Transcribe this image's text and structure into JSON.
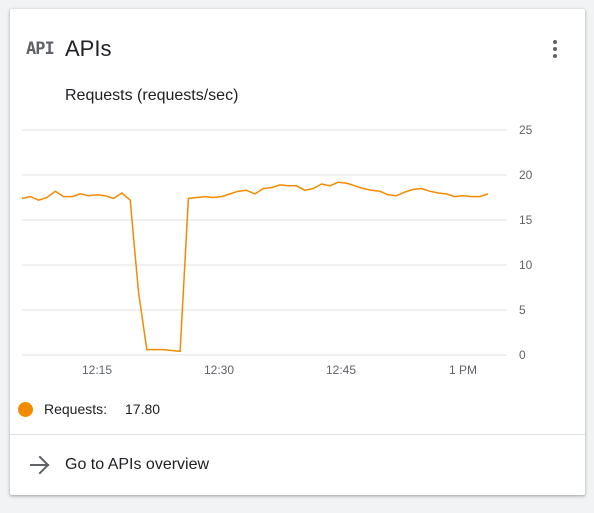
{
  "card": {
    "icon": "api-icon",
    "icon_text": "API",
    "title": "APIs",
    "menu_icon": "more-vert-icon"
  },
  "chart_data": {
    "type": "line",
    "title": "Requests (requests/sec)",
    "x_ticks": [
      "12:15",
      "12:30",
      "12:45",
      "1 PM"
    ],
    "y_ticks": [
      0,
      5,
      10,
      15,
      20,
      25
    ],
    "ylim": [
      0,
      25
    ],
    "grid": true,
    "series": [
      {
        "name": "Requests",
        "color": "#f28b00",
        "values": [
          17.4,
          17.6,
          17.2,
          17.5,
          18.2,
          17.6,
          17.6,
          17.9,
          17.7,
          17.8,
          17.7,
          17.4,
          18.0,
          17.2,
          7.0,
          0.6,
          0.6,
          0.6,
          0.5,
          0.4,
          17.4,
          17.5,
          17.6,
          17.5,
          17.6,
          17.9,
          18.2,
          18.3,
          17.9,
          18.5,
          18.6,
          18.9,
          18.8,
          18.8,
          18.3,
          18.5,
          19.0,
          18.8,
          19.2,
          19.1,
          18.8,
          18.5,
          18.3,
          18.2,
          17.8,
          17.7,
          18.1,
          18.4,
          18.5,
          18.2,
          18.0,
          17.9,
          17.6,
          17.7,
          17.6,
          17.6,
          17.9
        ]
      }
    ]
  },
  "legend": {
    "label": "Requests:",
    "value": "17.80",
    "color": "#f28b00"
  },
  "footer": {
    "icon": "arrow-right-icon",
    "label": "Go to APIs overview"
  }
}
